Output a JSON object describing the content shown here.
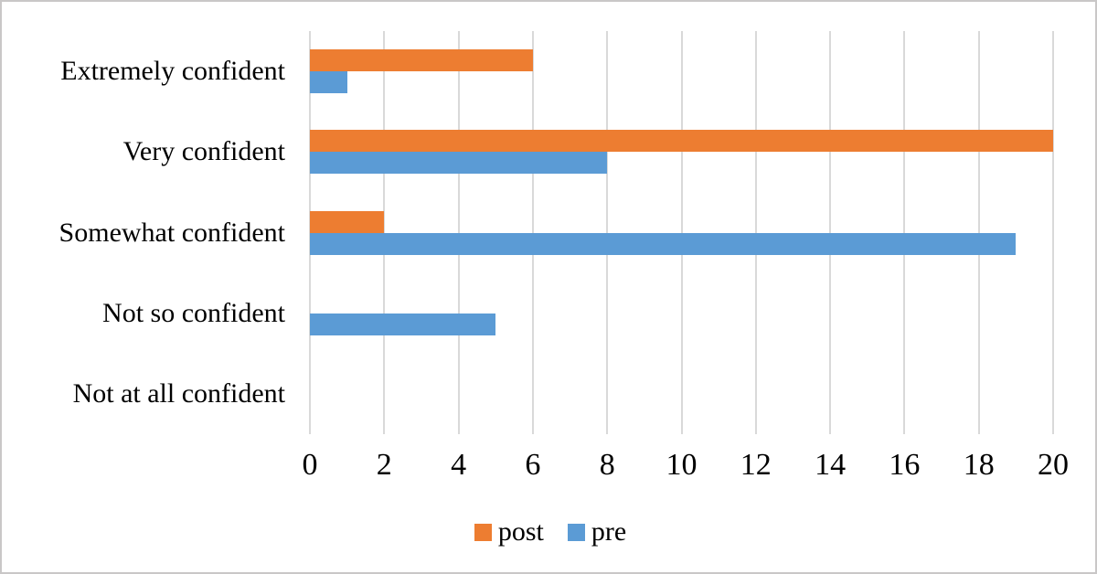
{
  "chart_data": {
    "type": "bar",
    "orientation": "horizontal",
    "title": "",
    "categories": [
      "Extremely confident",
      "Very confident",
      "Somewhat confident",
      "Not so confident",
      "Not at all confident"
    ],
    "series": [
      {
        "name": "post",
        "color": "#ED7D31",
        "values": [
          6,
          20,
          2,
          0,
          0
        ]
      },
      {
        "name": "pre",
        "color": "#5B9BD5",
        "values": [
          1,
          8,
          19,
          5,
          0
        ]
      }
    ],
    "xlim": [
      0,
      20
    ],
    "xticks": [
      0,
      2,
      4,
      6,
      8,
      10,
      12,
      14,
      16,
      18,
      20
    ],
    "grid": true,
    "legend_position": "bottom",
    "legend_items": [
      {
        "label": "post",
        "color": "#ED7D31"
      },
      {
        "label": "pre",
        "color": "#5B9BD5"
      }
    ]
  },
  "colors": {
    "gridline": "#D9D9D9",
    "border": "#C9C7C7",
    "background": "#FFFFFF",
    "text": "#000000",
    "post": "#ED7D31",
    "pre": "#5B9BD5"
  }
}
